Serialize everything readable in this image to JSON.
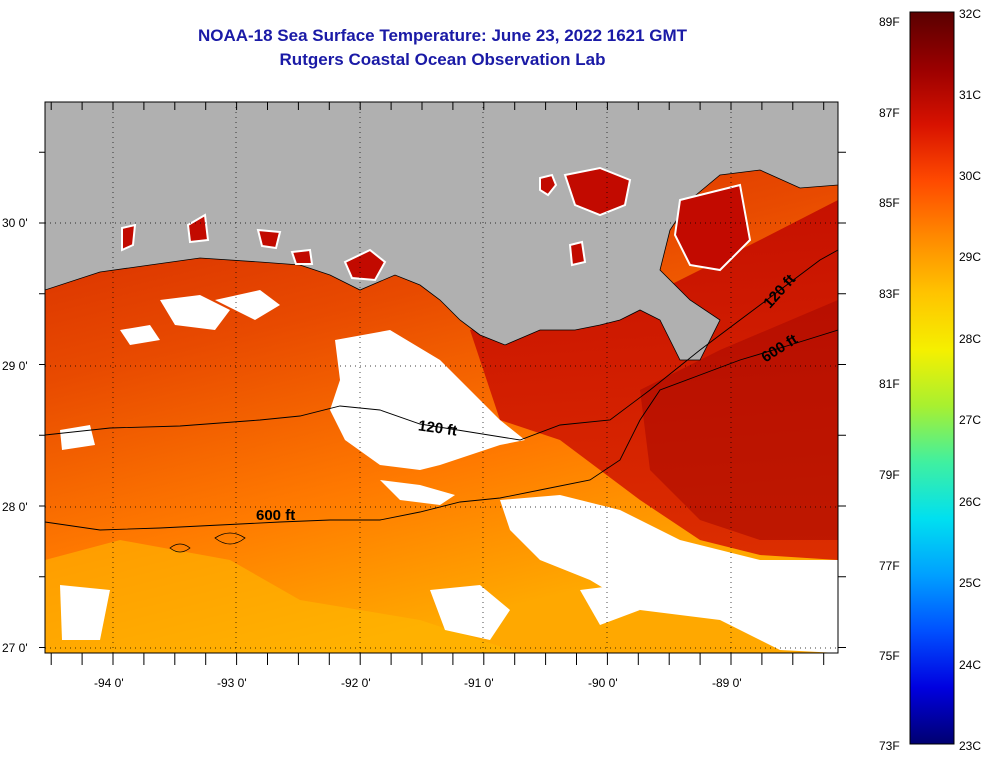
{
  "title": {
    "line1": "NOAA-18 Sea Surface Temperature:  June 23, 2022 1621 GMT",
    "line2": "Rutgers Coastal Ocean Observation Lab"
  },
  "map": {
    "lat_labels": [
      "30 0'",
      "29 0'",
      "28 0'",
      "27 0'"
    ],
    "lon_labels": [
      "-94 0'",
      "-93 0'",
      "-92 0'",
      "-91 0'",
      "-90 0'",
      "-89 0'"
    ],
    "contour_labels": [
      "120 ft",
      "120 ft",
      "600 ft",
      "600 ft"
    ],
    "colors": {
      "land": "#b0b0b0",
      "cloud": "#ffffff",
      "coastline": "#000000"
    }
  },
  "colorbar": {
    "f_labels": [
      "89F",
      "87F",
      "85F",
      "83F",
      "81F",
      "79F",
      "77F",
      "75F",
      "73F"
    ],
    "c_labels": [
      "32C",
      "31C",
      "30C",
      "29C",
      "28C",
      "27C",
      "26C",
      "25C",
      "24C",
      "23C"
    ],
    "gradient": [
      "#5a0000",
      "#9a0000",
      "#d81200",
      "#ff4a00",
      "#ff8a00",
      "#ffc400",
      "#f5f000",
      "#a8f030",
      "#40f0a0",
      "#00e0f0",
      "#00a0ff",
      "#0050ff",
      "#0000e0",
      "#000070"
    ]
  }
}
